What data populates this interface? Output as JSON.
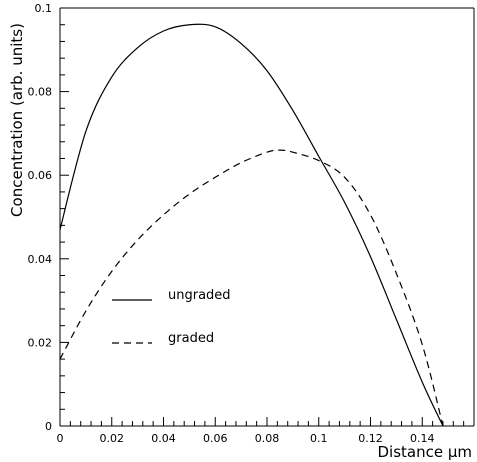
{
  "chart_data": {
    "type": "line",
    "title": "",
    "xlabel": "Distance μm",
    "ylabel": "Concentration (arb. units)",
    "xlim": [
      0,
      0.16
    ],
    "ylim": [
      0,
      0.1
    ],
    "grid": false,
    "legend_position": "left",
    "x_ticks": [
      "0",
      "0.02",
      "0.04",
      "0.06",
      "0.08",
      "0.1",
      "0.12",
      "0.14"
    ],
    "x_tick_values": [
      0,
      0.02,
      0.04,
      0.06,
      0.08,
      0.1,
      0.12,
      0.14
    ],
    "y_ticks": [
      "0",
      "0.02",
      "0.04",
      "0.06",
      "0.08",
      "0.1"
    ],
    "y_tick_values": [
      0,
      0.02,
      0.04,
      0.06,
      0.08,
      0.1
    ],
    "series": [
      {
        "name": "ungraded",
        "style": "solid",
        "color": "#000000",
        "x": [
          0,
          0.01,
          0.02,
          0.03,
          0.04,
          0.05,
          0.06,
          0.07,
          0.08,
          0.09,
          0.1,
          0.11,
          0.12,
          0.13,
          0.14,
          0.148
        ],
        "y": [
          0.047,
          0.0705,
          0.0835,
          0.0905,
          0.0945,
          0.096,
          0.0955,
          0.0915,
          0.085,
          0.0755,
          0.0645,
          0.0535,
          0.0405,
          0.0255,
          0.0105,
          0.0
        ]
      },
      {
        "name": "graded",
        "style": "dashed",
        "color": "#000000",
        "x": [
          0,
          0.01,
          0.02,
          0.03,
          0.04,
          0.05,
          0.06,
          0.07,
          0.08,
          0.085,
          0.09,
          0.1,
          0.11,
          0.12,
          0.13,
          0.14,
          0.148
        ],
        "y": [
          0.016,
          0.0275,
          0.037,
          0.0445,
          0.0505,
          0.0555,
          0.0595,
          0.063,
          0.0655,
          0.066,
          0.0655,
          0.0635,
          0.0595,
          0.0505,
          0.0365,
          0.0195,
          0.0
        ]
      }
    ]
  }
}
